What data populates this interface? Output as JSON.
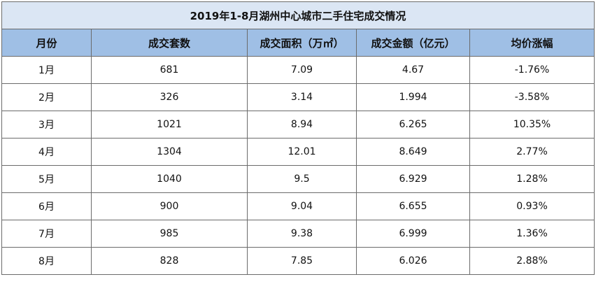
{
  "table": {
    "title": "2019年1-8月湖州中心城市二手住宅成交情况",
    "headers": [
      "月份",
      "成交套数",
      "成交面积（万㎡）",
      "成交金额（亿元）",
      "均价涨幅"
    ],
    "rows": [
      [
        "1月",
        "681",
        "7.09",
        "4.67",
        "-1.76%"
      ],
      [
        "2月",
        "326",
        "3.14",
        "1.994",
        "-3.58%"
      ],
      [
        "3月",
        "1021",
        "8.94",
        "6.265",
        "10.35%"
      ],
      [
        "4月",
        "1304",
        "12.01",
        "8.649",
        "2.77%"
      ],
      [
        "5月",
        "1040",
        "9.5",
        "6.929",
        "1.28%"
      ],
      [
        "6月",
        "900",
        "9.04",
        "6.655",
        "0.93%"
      ],
      [
        "7月",
        "985",
        "9.38",
        "6.999",
        "1.36%"
      ],
      [
        "8月",
        "828",
        "7.85",
        "6.026",
        "2.88%"
      ]
    ]
  },
  "colors": {
    "title_bg": "#dbe6f4",
    "header_bg": "#9fbfe5",
    "border": "#6b6b6b"
  }
}
